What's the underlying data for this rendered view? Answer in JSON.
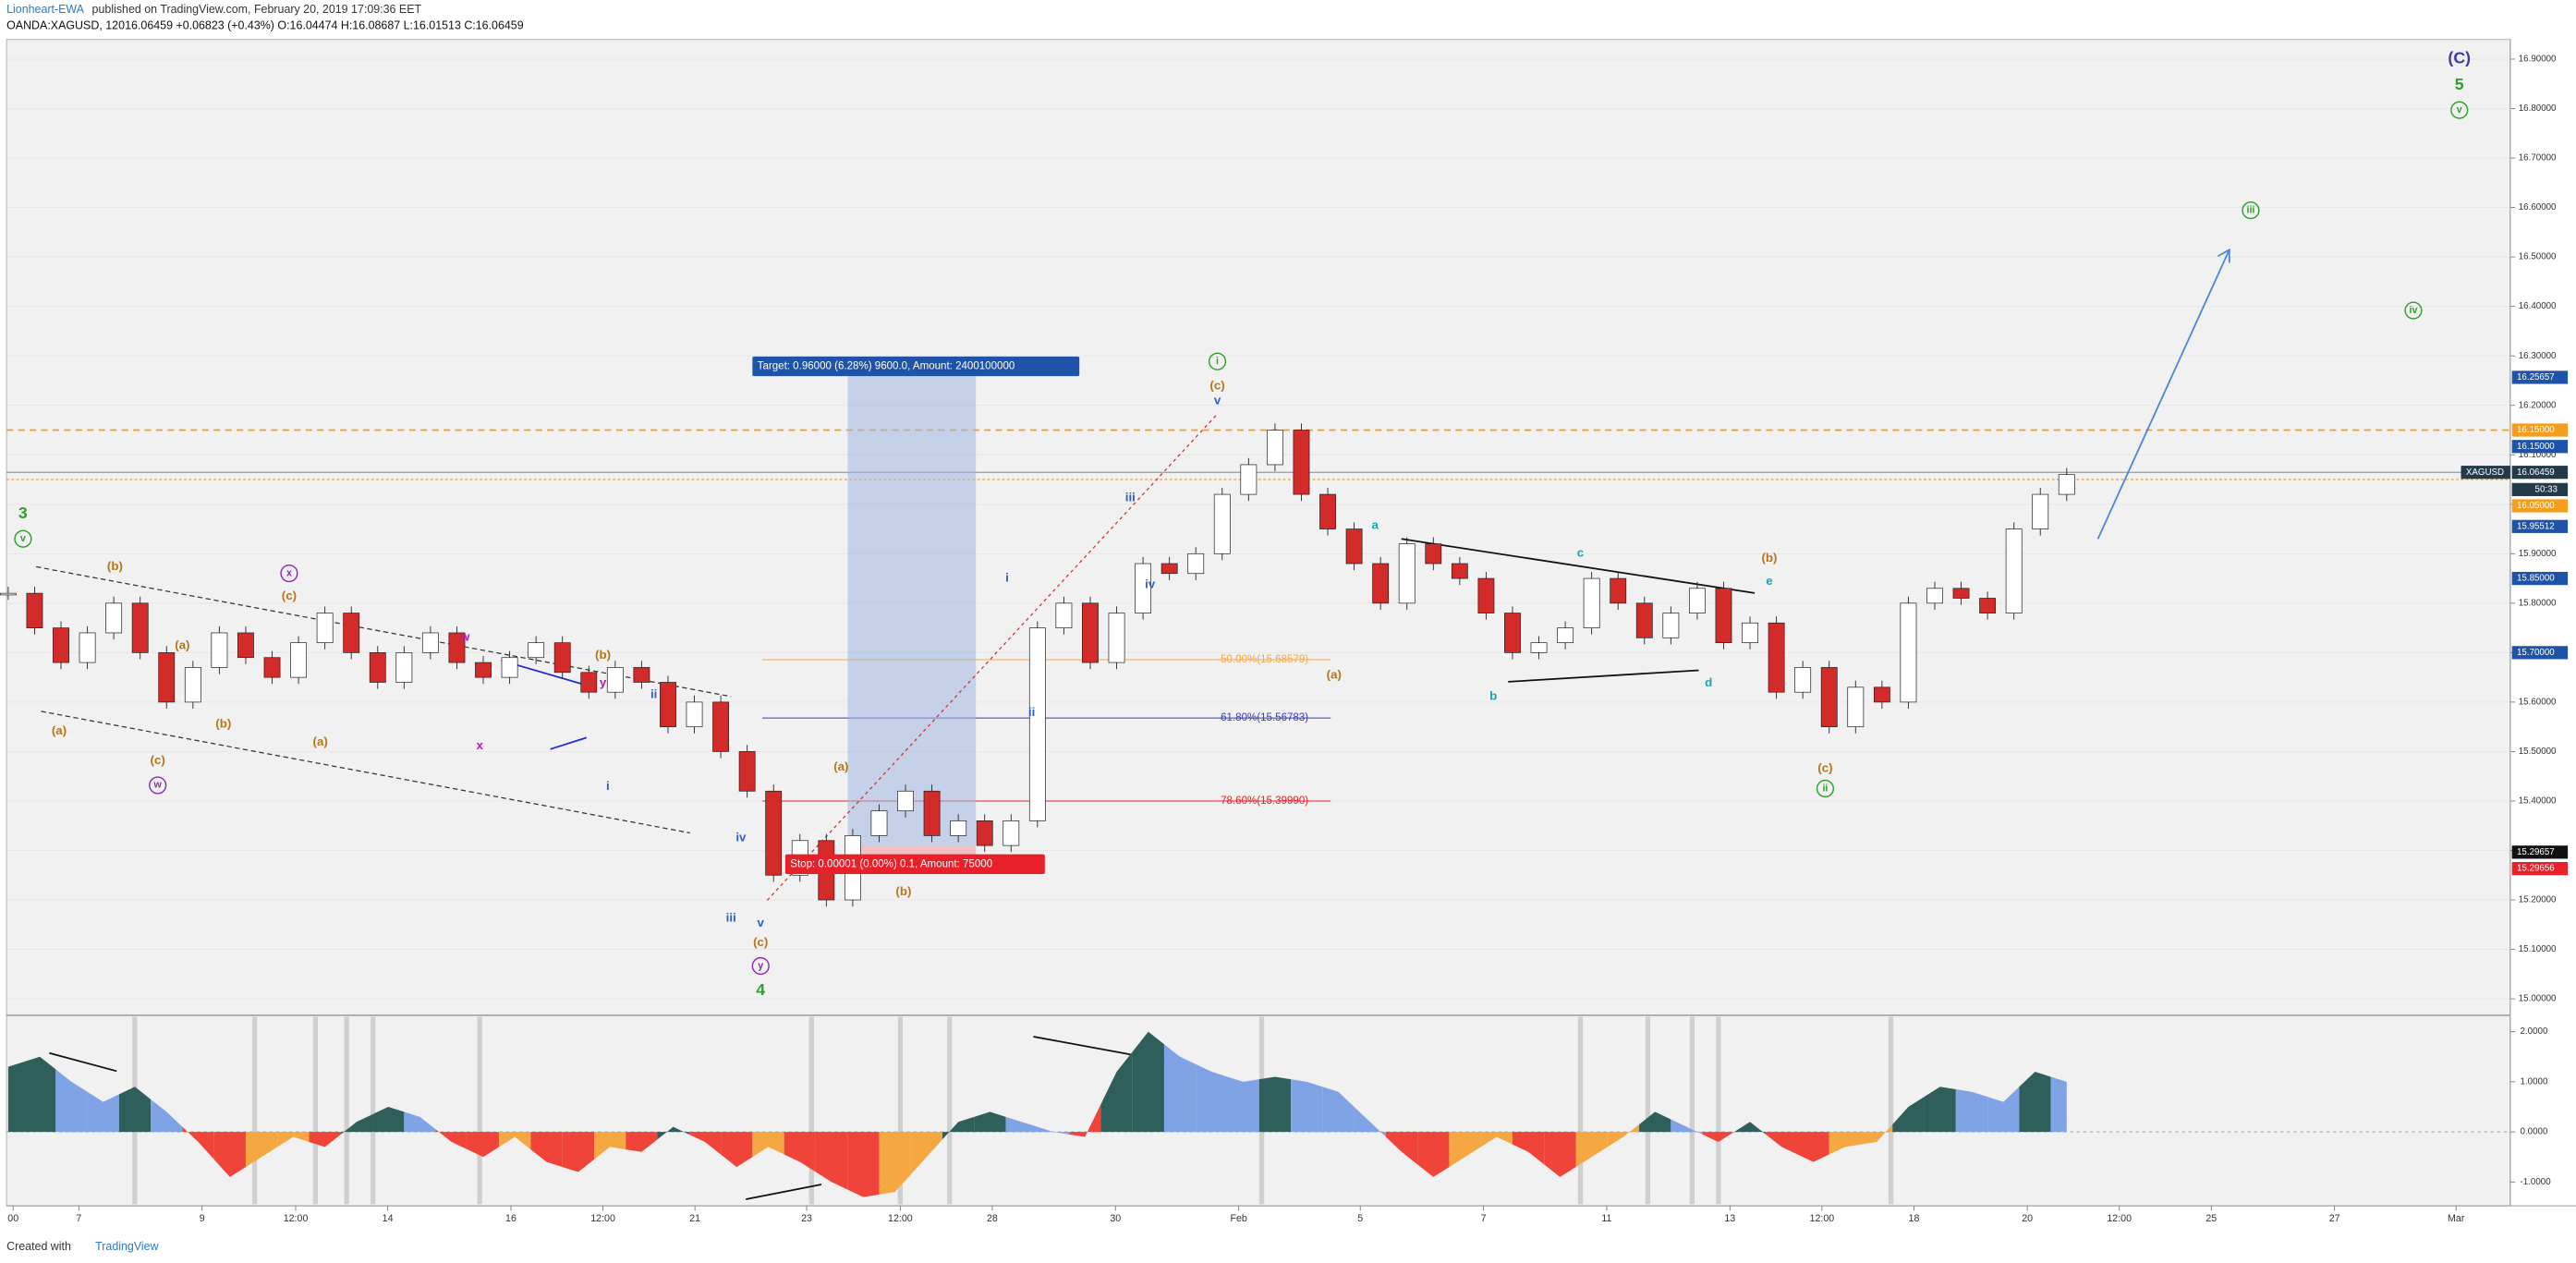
{
  "header": {
    "publisher": "Lionheart-EWA",
    "published": "published on TradingView.com, February 20, 2019 17:09:36 EET",
    "symbol": "OANDA:XAGUSD, 120",
    "quote": "16.06459 +0.06823 (+0.43%) O:16.04474 H:16.08687 L:16.01513 C:16.06459"
  },
  "chart": {
    "symbol": "XAGUSD",
    "countdown": "50:33",
    "price_axis": [
      {
        "value": 16.9,
        "label": "16.90000"
      },
      {
        "value": 16.8,
        "label": "16.80000"
      },
      {
        "value": 16.7,
        "label": "16.70000"
      },
      {
        "value": 16.6,
        "label": "16.60000"
      },
      {
        "value": 16.5,
        "label": "16.50000"
      },
      {
        "value": 16.4,
        "label": "16.40000"
      },
      {
        "value": 16.3,
        "label": "16.30000"
      },
      {
        "value": 16.2,
        "label": "16.20000"
      },
      {
        "value": 16.1,
        "label": "16.10000"
      },
      {
        "value": 16.0,
        "label": "16.00000"
      },
      {
        "value": 15.9,
        "label": "15.90000"
      },
      {
        "value": 15.8,
        "label": "15.80000"
      },
      {
        "value": 15.7,
        "label": "15.70000"
      },
      {
        "value": 15.6,
        "label": "15.60000"
      },
      {
        "value": 15.5,
        "label": "15.50000"
      },
      {
        "value": 15.4,
        "label": "15.40000"
      },
      {
        "value": 15.3,
        "label": "15.30000"
      },
      {
        "value": 15.2,
        "label": "15.20000"
      },
      {
        "value": 15.1,
        "label": "15.10000"
      },
      {
        "value": 15.0,
        "label": "15.00000"
      }
    ],
    "price_tags": [
      {
        "value": 16.25657,
        "label": "16.25657",
        "color": "#1e53a8"
      },
      {
        "value": 16.15,
        "label": "16.15000",
        "color": "#f59d1c"
      },
      {
        "value": 16.15,
        "label": "16.15000",
        "color": "#1e53a8"
      },
      {
        "value": 16.06459,
        "label": "16.06459",
        "color": "#233a4a"
      },
      {
        "value": 16.05,
        "label": "16.05000",
        "color": "#f59d1c"
      },
      {
        "value": 15.95512,
        "label": "15.95512",
        "color": "#1e53a8"
      },
      {
        "value": 15.85,
        "label": "15.85000",
        "color": "#1e53a8"
      },
      {
        "value": 15.7,
        "label": "15.70000",
        "color": "#1e53a8"
      },
      {
        "value": 15.29657,
        "label": "15.29657",
        "color": "#111111"
      },
      {
        "value": 15.29656,
        "label": "15.29656",
        "color": "#e8202a"
      }
    ],
    "closes": [
      15.82,
      15.75,
      15.68,
      15.74,
      15.8,
      15.7,
      15.6,
      15.67,
      15.74,
      15.69,
      15.65,
      15.72,
      15.78,
      15.7,
      15.64,
      15.7,
      15.74,
      15.68,
      15.65,
      15.69,
      15.72,
      15.66,
      15.62,
      15.67,
      15.64,
      15.55,
      15.6,
      15.5,
      15.42,
      15.25,
      15.32,
      15.2,
      15.33,
      15.38,
      15.42,
      15.33,
      15.36,
      15.31,
      15.36,
      15.75,
      15.8,
      15.68,
      15.78,
      15.88,
      15.86,
      15.9,
      16.02,
      16.08,
      16.15,
      16.02,
      15.95,
      15.88,
      15.8,
      15.92,
      15.88,
      15.85,
      15.78,
      15.7,
      15.72,
      15.75,
      15.85,
      15.8,
      15.73,
      15.78,
      15.83,
      15.72,
      15.76,
      15.62,
      15.67,
      15.55,
      15.63,
      15.6,
      15.8,
      15.83,
      15.81,
      15.78,
      15.95,
      16.02,
      16.06
    ],
    "levels": [
      {
        "value": 16.15,
        "color": "#f59d1c"
      },
      {
        "value": 16.05,
        "color": "#f59d1c"
      }
    ],
    "fib": [
      {
        "value": 15.68579,
        "label": "50.00%(15.68579)",
        "color": "#f5a742"
      },
      {
        "value": 15.56783,
        "label": "61.80%(15.56783)",
        "color": "#3a3ab8"
      },
      {
        "value": 15.3999,
        "label": "78.60%(15.39990)",
        "color": "#e8202a"
      }
    ],
    "target_label": "Target: 0.96000 (6.28%) 9600.0, Amount: 2400100000",
    "stop_label": "Stop: 0.00001 (0.00%) 0.1, Amount: 75000",
    "waves": [
      "3",
      "v",
      "(b)",
      "(a)",
      "(c)",
      "w",
      "(a)",
      "(b)",
      "x",
      "(c)",
      "(a)",
      "w",
      "x",
      "y",
      "(b)",
      "ii",
      "i",
      "iv",
      "iii",
      "v",
      "(c)",
      "y",
      "4",
      "(a)",
      "(b)",
      "i",
      "ii",
      "iii",
      "iv",
      "i",
      "(c)",
      "v",
      "(a)",
      "a",
      "b",
      "c",
      "d",
      "(b)",
      "e",
      "(c)",
      "ii",
      "iii",
      "iv",
      "(C)",
      "5",
      "v"
    ],
    "time_axis": [
      "00",
      "7",
      "9",
      "12:00",
      "14",
      "16",
      "12:00",
      "21",
      "23",
      "12:00",
      "28",
      "30",
      "Feb",
      "5",
      "7",
      "11",
      "13",
      "12:00",
      "18",
      "20",
      "12:00",
      "25",
      "27",
      "Mar"
    ]
  },
  "oscillator": {
    "axis": [
      {
        "value": 2,
        "label": "2.0000"
      },
      {
        "value": 1,
        "label": "1.0000"
      },
      {
        "value": 0,
        "label": "0.0000"
      },
      {
        "value": -1,
        "label": "-1.0000"
      }
    ],
    "values": [
      1.3,
      1.5,
      1.0,
      0.6,
      0.9,
      0.4,
      -0.2,
      -0.9,
      -0.5,
      -0.1,
      -0.3,
      0.2,
      0.5,
      0.3,
      -0.2,
      -0.5,
      -0.1,
      -0.6,
      -0.8,
      -0.3,
      -0.4,
      0.1,
      -0.2,
      -0.7,
      -0.3,
      -0.6,
      -1.0,
      -1.3,
      -1.2,
      -0.5,
      0.2,
      0.4,
      0.2,
      0.0,
      -0.1,
      1.2,
      2.0,
      1.5,
      1.2,
      1.0,
      1.1,
      1.0,
      0.8,
      0.2,
      -0.4,
      -0.9,
      -0.5,
      -0.1,
      -0.4,
      -0.9,
      -0.5,
      -0.1,
      0.4,
      0.1,
      -0.2,
      0.2,
      -0.3,
      -0.6,
      -0.3,
      -0.2,
      0.5,
      0.9,
      0.8,
      0.6,
      1.2,
      1.0
    ]
  },
  "footer": {
    "text": "Created with",
    "brand": "TradingView"
  }
}
